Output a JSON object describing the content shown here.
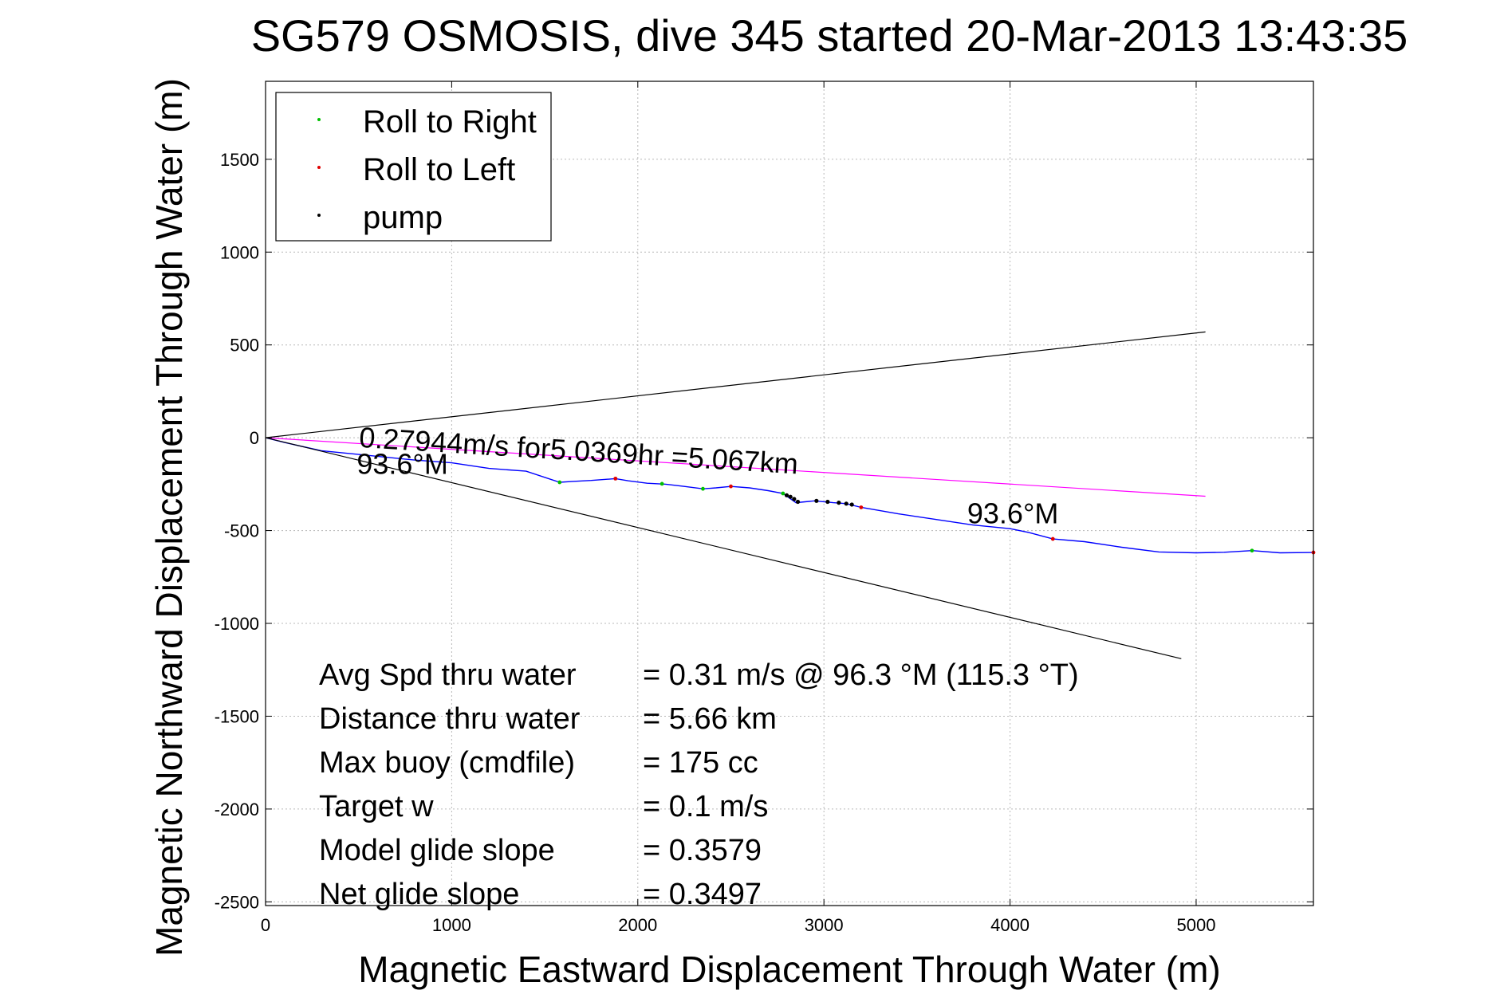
{
  "chart_data": {
    "type": "line",
    "title": "SG579 OSMOSIS, dive 345 started 20-Mar-2013 13:43:35",
    "xlabel": "Magnetic Eastward Displacement Through Water (m)",
    "ylabel": "Magnetic Northward Displacement Through Water (m)",
    "xlim": [
      0,
      5630
    ],
    "ylim": [
      -2520,
      1920
    ],
    "xticks": [
      0,
      1000,
      2000,
      3000,
      4000,
      5000
    ],
    "yticks": [
      -2500,
      -2000,
      -1500,
      -1000,
      -500,
      0,
      500,
      1000,
      1500
    ],
    "grid": true,
    "legend": {
      "placement": "top-left",
      "entries": [
        {
          "label": "Roll to Right",
          "color": "#00c000"
        },
        {
          "label": "Roll to Left",
          "color": "#e00000"
        },
        {
          "label": "pump",
          "color": "#000000"
        }
      ]
    },
    "series": [
      {
        "color": "#0000ff",
        "x": [
          0,
          100,
          300,
          500,
          800,
          1000,
          1200,
          1400,
          1580,
          1650,
          1750,
          1880,
          1950,
          2050,
          2150,
          2250,
          2350,
          2420,
          2500,
          2600,
          2700,
          2780,
          2850,
          2950,
          3050,
          3120,
          3200,
          3400,
          3600,
          3800,
          4000,
          4100,
          4230,
          4400,
          4600,
          4800,
          5000,
          5150,
          5300,
          5450,
          5630
        ],
        "y": [
          0,
          -25,
          -70,
          -90,
          -120,
          -135,
          -165,
          -180,
          -240,
          -235,
          -230,
          -220,
          -232,
          -245,
          -250,
          -262,
          -275,
          -270,
          -262,
          -270,
          -285,
          -300,
          -350,
          -340,
          -350,
          -355,
          -375,
          -410,
          -440,
          -470,
          -490,
          -510,
          -545,
          -560,
          -590,
          -615,
          -620,
          -617,
          -608,
          -620,
          -618
        ]
      },
      {
        "color": "#ff00ff",
        "x": [
          0,
          5050
        ],
        "y": [
          0,
          -315
        ]
      },
      {
        "color": "#000000",
        "x": [
          0,
          5050
        ],
        "y": [
          0,
          570
        ]
      },
      {
        "color": "#000000",
        "x": [
          0,
          4920
        ],
        "y": [
          0,
          -1190
        ]
      }
    ],
    "markers": {
      "roll_right": {
        "x": [
          1580,
          2130,
          2350,
          2780,
          5300
        ],
        "y": [
          -240,
          -248,
          -275,
          -300,
          -608
        ]
      },
      "roll_left": {
        "x": [
          1880,
          2500,
          3200,
          4230,
          5630
        ],
        "y": [
          -220,
          -262,
          -375,
          -545,
          -618
        ]
      },
      "pump": {
        "x": [
          2800,
          2820,
          2840,
          2860,
          2960,
          3020,
          3080,
          3120,
          3150
        ],
        "y": [
          -310,
          -318,
          -330,
          -345,
          -340,
          -345,
          -350,
          -355,
          -360
        ]
      }
    },
    "annotations": {
      "speed": {
        "text": "0.27944m/s for5.0369hr =5.067km",
        "x": 500,
        "y": -50,
        "rotate_deg": 3.5
      },
      "heading_left": {
        "text": "93.6°M",
        "x": 490,
        "y": -195
      },
      "heading_right": {
        "text": "93.6°M",
        "x": 3770,
        "y": -460
      }
    },
    "stats": [
      {
        "label": "Avg Spd thru water",
        "value": "=  0.31 m/s @  96.3 °M (115.3 °T)"
      },
      {
        "label": "Distance thru water",
        "value": "=  5.66 km"
      },
      {
        "label": "Max buoy (cmdfile)",
        "value": "= 175 cc"
      },
      {
        "label": "Target w",
        "value": "= 0.1 m/s"
      },
      {
        "label": "Model glide slope",
        "value": "= 0.3579"
      },
      {
        "label": "Net glide slope",
        "value": "= 0.3497"
      }
    ]
  }
}
